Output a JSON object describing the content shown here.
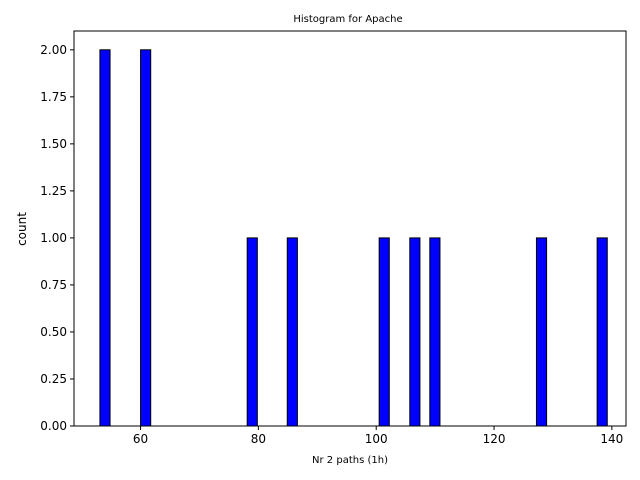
{
  "chart_data": {
    "type": "bar",
    "title": "Histogram for Apache",
    "xlabel": "Nr 2 paths (1h)",
    "ylabel": "count",
    "xlim": [
      48.7,
      142.4
    ],
    "ylim": [
      0,
      2.1
    ],
    "xticks": [
      60,
      80,
      100,
      120,
      140
    ],
    "xtick_labels": [
      "60",
      "80",
      "100",
      "120",
      "140"
    ],
    "yticks": [
      0,
      0.25,
      0.5,
      0.75,
      1.0,
      1.25,
      1.5,
      1.75,
      2.0
    ],
    "ytick_labels": [
      "0.00",
      "0.25",
      "0.50",
      "0.75",
      "1.00",
      "1.25",
      "1.50",
      "1.75",
      "2.00"
    ],
    "bin_width": 1.72,
    "bars": [
      {
        "x": 53.1,
        "count": 2
      },
      {
        "x": 60.0,
        "count": 2
      },
      {
        "x": 78.1,
        "count": 1
      },
      {
        "x": 84.9,
        "count": 1
      },
      {
        "x": 100.5,
        "count": 1
      },
      {
        "x": 105.7,
        "count": 1
      },
      {
        "x": 109.1,
        "count": 1
      },
      {
        "x": 127.2,
        "count": 1
      },
      {
        "x": 137.5,
        "count": 1
      }
    ],
    "bar_color": "#0000ff",
    "edge_color": "#000000",
    "grid": false
  }
}
